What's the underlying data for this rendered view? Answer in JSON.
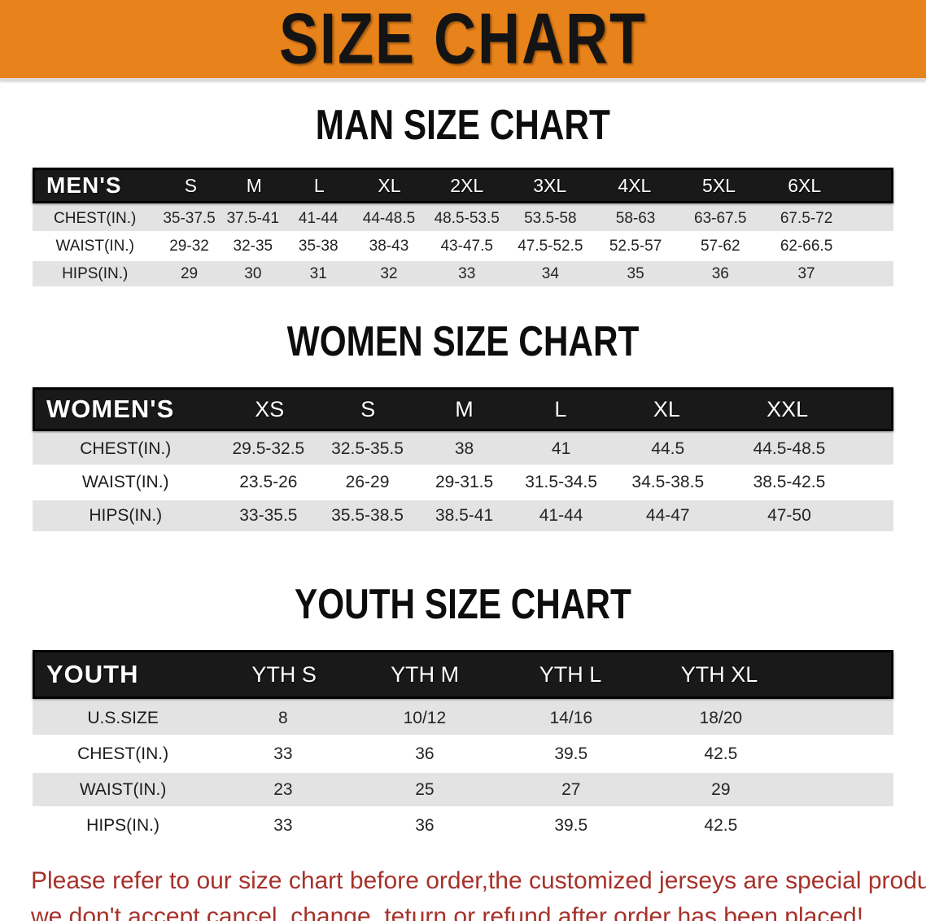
{
  "banner": {
    "title": "SIZE CHART",
    "bg_color": "#E8821A",
    "text_color": "#141414"
  },
  "colors": {
    "table_header_bg": "#191919",
    "table_header_text": "#FFFFFF",
    "row_alt_bg": "#E4E3E3",
    "row_bg": "#FFFFFF",
    "disclaimer_text": "#A6322B"
  },
  "sections": [
    {
      "heading": "MAN SIZE CHART",
      "table": {
        "header_label": "MEN'S",
        "columns": [
          "S",
          "M",
          "L",
          "XL",
          "2XL",
          "3XL",
          "4XL",
          "5XL",
          "6XL"
        ],
        "rows": [
          {
            "label": "CHEST(IN.)",
            "values": [
              "35-37.5",
              "37.5-41",
              "41-44",
              "44-48.5",
              "48.5-53.5",
              "53.5-58",
              "58-63",
              "63-67.5",
              "67.5-72"
            ]
          },
          {
            "label": "WAIST(IN.)",
            "values": [
              "29-32",
              "32-35",
              "35-38",
              "38-43",
              "43-47.5",
              "47.5-52.5",
              "52.5-57",
              "57-62",
              "62-66.5"
            ]
          },
          {
            "label": "HIPS(IN.)",
            "values": [
              "29",
              "30",
              "31",
              "32",
              "33",
              "34",
              "35",
              "36",
              "37"
            ]
          }
        ]
      }
    },
    {
      "heading": "WOMEN SIZE CHART",
      "table": {
        "header_label": "WOMEN'S",
        "columns": [
          "XS",
          "S",
          "M",
          "L",
          "XL",
          "XXL"
        ],
        "rows": [
          {
            "label": "CHEST(IN.)",
            "values": [
              "29.5-32.5",
              "32.5-35.5",
              "38",
              "41",
              "44.5",
              "44.5-48.5"
            ]
          },
          {
            "label": "WAIST(IN.)",
            "values": [
              "23.5-26",
              "26-29",
              "29-31.5",
              "31.5-34.5",
              "34.5-38.5",
              "38.5-42.5"
            ]
          },
          {
            "label": "HIPS(IN.)",
            "values": [
              "33-35.5",
              "35.5-38.5",
              "38.5-41",
              "41-44",
              "44-47",
              "47-50"
            ]
          }
        ]
      }
    },
    {
      "heading": "YOUTH SIZE CHART",
      "table": {
        "header_label": "YOUTH",
        "columns": [
          "YTH S",
          "YTH M",
          "YTH L",
          "YTH XL"
        ],
        "rows": [
          {
            "label": "U.S.SIZE",
            "values": [
              "8",
              "10/12",
              "14/16",
              "18/20"
            ]
          },
          {
            "label": "CHEST(IN.)",
            "values": [
              "33",
              "36",
              "39.5",
              "42.5"
            ]
          },
          {
            "label": "WAIST(IN.)",
            "values": [
              "23",
              "25",
              "27",
              "29"
            ]
          },
          {
            "label": "HIPS(IN.)",
            "values": [
              "33",
              "36",
              "39.5",
              "42.5"
            ]
          }
        ]
      }
    }
  ],
  "disclaimer": {
    "lines": [
      "Please refer to our size chart before order,the customized jerseys are special products,",
      "we don't accept cancel, change, teturn or refund after order has been placed!"
    ]
  }
}
